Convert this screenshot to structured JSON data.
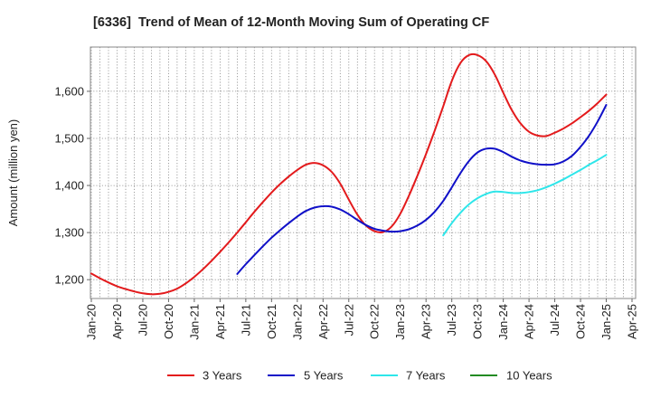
{
  "chart_data": {
    "type": "line",
    "title": "[6336]  Trend of Mean of 12-Month Moving Sum of Operating CF",
    "ylabel": "Amount (million yen)",
    "ylim": [
      1160,
      1694
    ],
    "x_range": [
      "2020-01",
      "2025-04"
    ],
    "grid": true,
    "legend_position": "bottom",
    "yticks": [
      {
        "value": 1200,
        "label": "1,200"
      },
      {
        "value": 1300,
        "label": "1,300"
      },
      {
        "value": 1400,
        "label": "1,400"
      },
      {
        "value": 1500,
        "label": "1,500"
      },
      {
        "value": 1600,
        "label": "1,600"
      }
    ],
    "xticks": [
      "Jan-20",
      "Apr-20",
      "Jul-20",
      "Oct-20",
      "Jan-21",
      "Apr-21",
      "Jul-21",
      "Oct-21",
      "Jan-22",
      "Apr-22",
      "Jul-22",
      "Oct-22",
      "Jan-23",
      "Apr-23",
      "Jul-23",
      "Oct-23",
      "Jan-24",
      "Apr-24",
      "Jul-24",
      "Oct-24",
      "Jan-25",
      "Apr-25"
    ],
    "series": [
      {
        "name": "3 Years",
        "color": "#e31a1c",
        "start": "2020-01",
        "values": [
          1213,
          1203,
          1194,
          1186,
          1180,
          1175,
          1171,
          1169,
          1170,
          1174,
          1181,
          1192,
          1206,
          1222,
          1240,
          1259,
          1279,
          1300,
          1322,
          1344,
          1365,
          1385,
          1403,
          1419,
          1433,
          1444,
          1448,
          1443,
          1429,
          1404,
          1370,
          1338,
          1315,
          1303,
          1301,
          1313,
          1340,
          1378,
          1421,
          1467,
          1516,
          1568,
          1622,
          1660,
          1677,
          1677,
          1664,
          1636,
          1597,
          1560,
          1532,
          1514,
          1506,
          1505,
          1512,
          1521,
          1532,
          1545,
          1559,
          1575,
          1593
        ]
      },
      {
        "name": "5 Years",
        "color": "#1010c8",
        "start": "2021-06",
        "values": [
          1212,
          1233,
          1252,
          1271,
          1289,
          1305,
          1320,
          1334,
          1346,
          1353,
          1356,
          1355,
          1349,
          1339,
          1327,
          1316,
          1308,
          1304,
          1302,
          1303,
          1307,
          1315,
          1327,
          1344,
          1367,
          1396,
          1426,
          1452,
          1470,
          1478,
          1478,
          1471,
          1461,
          1453,
          1448,
          1445,
          1444,
          1445,
          1451,
          1463,
          1482,
          1506,
          1536,
          1571
        ]
      },
      {
        "name": "7 Years",
        "color": "#2ee6ea",
        "start": "2023-06",
        "values": [
          1294,
          1320,
          1342,
          1360,
          1373,
          1382,
          1387,
          1386,
          1384,
          1384,
          1386,
          1390,
          1396,
          1404,
          1413,
          1423,
          1433,
          1444,
          1454,
          1465
        ]
      },
      {
        "name": "10 Years",
        "color": "#228b22",
        "start": "2025-01",
        "values": []
      }
    ]
  }
}
